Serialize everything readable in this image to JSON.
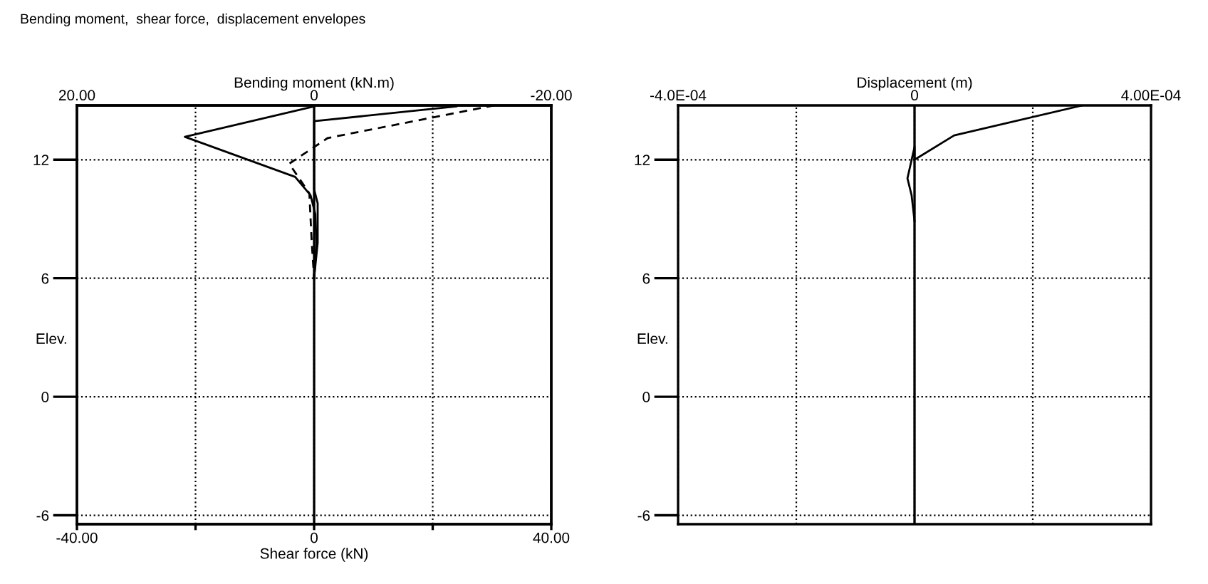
{
  "chart_data": [
    {
      "type": "line",
      "title": "Bending moment,  shear force,  displacement envelopes",
      "xlabel": "Shear force (kN)",
      "x2label": "Bending moment (kN.m)",
      "ylabel": "Elev.",
      "xlim": [
        -40,
        40
      ],
      "xticks": [
        {
          "value": -40,
          "label": "-40.00"
        },
        {
          "value": -20,
          "label": null
        },
        0,
        {
          "value": 20,
          "label": null
        },
        {
          "value": 40,
          "label": "40.00"
        }
      ],
      "x2lim": [
        20,
        -20
      ],
      "x2ticks": [
        {
          "value": 20,
          "label": "20.00"
        },
        {
          "value": 10,
          "label": null
        },
        0,
        {
          "value": -10,
          "label": null
        },
        {
          "value": -20,
          "label": "-20.00"
        }
      ],
      "ylim": [
        -6.45,
        14.75
      ],
      "yticks": [
        12,
        6,
        0,
        -6
      ],
      "grid": true,
      "ref_lines": [
        {
          "axis": "x",
          "value": 0,
          "color": "#000000"
        }
      ],
      "series": [
        {
          "color": "#000000",
          "axis": "x2",
          "line_style": "solid",
          "x": [
            0.0,
            10.9,
            1.6,
            0.3,
            -0.1,
            -0.2,
            0.0
          ],
          "values": [
            14.7,
            13.16,
            11.13,
            10.2,
            9.25,
            7.8,
            6.0
          ]
        },
        {
          "color": "#000000",
          "axis": "x2",
          "line_style": "solid",
          "x": [
            -12,
            0,
            0,
            -0.3,
            -0.3,
            0
          ],
          "values": [
            14.7,
            13.95,
            10.5,
            9.8,
            7.8,
            6.0
          ]
        },
        {
          "color": "#000000",
          "line_style": "dashed",
          "x": [
            30.4,
            2.3,
            -4.2,
            -0.8,
            -0.4,
            0
          ],
          "values": [
            14.75,
            13.1,
            11.8,
            10.3,
            7.8,
            6.0
          ]
        }
      ]
    },
    {
      "type": "line",
      "xlabel": "Displacement (m)",
      "xlim": [
        -0.0004,
        0.0004
      ],
      "xticks": [
        {
          "value": -0.0004,
          "label": "-4.0E-04"
        },
        {
          "value": -0.0002,
          "label": null
        },
        0,
        {
          "value": 0.0002,
          "label": null
        },
        {
          "value": 0.0004,
          "label": "4.00E-04"
        }
      ],
      "ylabel": "Elev.",
      "ylim": [
        -6.45,
        14.75
      ],
      "yticks": [
        12,
        6,
        0,
        -6
      ],
      "grid": true,
      "ref_lines": [
        {
          "axis": "x",
          "value": 0,
          "color": "#000000"
        }
      ],
      "series": [
        {
          "color": "#000000",
          "line_style": "solid",
          "x": [
            0.000284,
            6.7e-05,
            0.0,
            0.0,
            -1.2e-05,
            -5e-06,
            0.0
          ],
          "values": [
            14.75,
            13.23,
            12.0,
            12.65,
            11.06,
            10.2,
            8.9
          ]
        }
      ]
    }
  ]
}
